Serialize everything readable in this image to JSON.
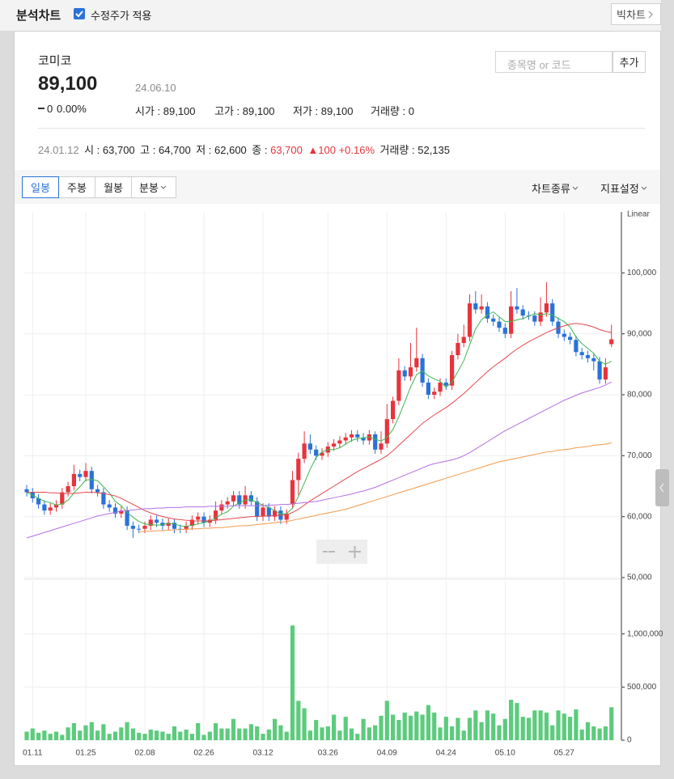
{
  "header": {
    "title": "분석차트",
    "checkbox_label": "수정주가 적용",
    "big_chart": "빅차트"
  },
  "search": {
    "placeholder": "종목명 or 코드",
    "button": "추가"
  },
  "stock": {
    "name": "코미코",
    "price": "89,100",
    "date": "24.06.10",
    "change": "0",
    "change_rate": "0.00%",
    "stats": [
      "시가 : 89,100",
      "고가 : 89,100",
      "저가 : 89,100",
      "거래량 : 0"
    ]
  },
  "cursor_info": {
    "date": "24.01.12",
    "open": "시 : 63,700",
    "high": "고 : 64,700",
    "low": "저 : 62,600",
    "close_label": "종 :",
    "close": "63,700",
    "change": "▲100",
    "change_rate": "+0.16%",
    "volume": "거래량 : 52,135"
  },
  "tabs": [
    "일봉",
    "주봉",
    "월봉",
    "분봉"
  ],
  "active_tab": 0,
  "menus": [
    "차트종류",
    "지표설정"
  ],
  "chart_data": [
    {
      "type": "candlestick",
      "scale_label": "Linear",
      "up_color": "#e8333c",
      "down_color": "#2a72d8",
      "ylim": [
        50000,
        110000
      ],
      "yticks": [
        {
          "value": 50000,
          "label": "50,000"
        },
        {
          "value": 60000,
          "label": "60,000"
        },
        {
          "value": 70000,
          "label": "70,000"
        },
        {
          "value": 80000,
          "label": "80,000"
        },
        {
          "value": 90000,
          "label": "90,000"
        },
        {
          "value": 100000,
          "label": "100,000"
        }
      ],
      "grid": true,
      "open": [
        64500,
        64000,
        63000,
        62000,
        61000,
        61500,
        62000,
        64000,
        65000,
        67000,
        66500,
        67500,
        64500,
        64000,
        62000,
        61500,
        60500,
        61000,
        58500,
        58000,
        58000,
        58500,
        59500,
        59000,
        58500,
        59000,
        58000,
        58000,
        58500,
        59500,
        60000,
        59000,
        59500,
        61000,
        62000,
        62500,
        63500,
        62000,
        63500,
        62500,
        60000,
        61500,
        60000,
        61000,
        59500,
        62000,
        66000,
        69500,
        72000,
        71000,
        70000,
        70500,
        71500,
        72000,
        72500,
        73000,
        73500,
        73000,
        72500,
        73500,
        71000,
        72000,
        76000,
        79000,
        84000,
        83000,
        84500,
        86000,
        82000,
        80000,
        80500,
        82000,
        81500,
        86500,
        88500,
        89500,
        95000,
        94000,
        94500,
        92500,
        92000,
        91000,
        90000,
        94500,
        94000,
        93000,
        93000,
        92000,
        93500,
        95000,
        92000,
        90000,
        89500,
        89000,
        87000,
        86500,
        86000,
        85500,
        82500,
        88300
      ],
      "high": [
        65200,
        64700,
        63700,
        62700,
        62200,
        62700,
        64700,
        65700,
        68500,
        67700,
        68800,
        68200,
        65200,
        64700,
        62700,
        62200,
        61700,
        61700,
        59200,
        58700,
        59200,
        60200,
        60200,
        59700,
        59700,
        59700,
        58700,
        59200,
        60200,
        60700,
        60700,
        60200,
        62500,
        62700,
        63200,
        64200,
        64200,
        65000,
        64200,
        63200,
        62200,
        62200,
        61700,
        61700,
        61200,
        67500,
        70500,
        74000,
        73500,
        71700,
        71200,
        72200,
        72700,
        73200,
        73700,
        74200,
        74200,
        73700,
        74200,
        74000,
        74000,
        78500,
        79700,
        86000,
        84700,
        88500,
        91000,
        86700,
        82700,
        81200,
        82700,
        82700,
        87200,
        90000,
        91500,
        96500,
        97000,
        96500,
        95200,
        93200,
        92700,
        91700,
        97000,
        97500,
        94700,
        93700,
        93700,
        96000,
        98500,
        95700,
        92700,
        90700,
        90200,
        89700,
        87700,
        87200,
        86700,
        86200,
        86000,
        91500
      ],
      "low": [
        63300,
        62300,
        61300,
        60300,
        60300,
        60800,
        61300,
        63300,
        64300,
        65800,
        65800,
        63800,
        63300,
        61300,
        60800,
        59800,
        59800,
        57800,
        56500,
        57300,
        57300,
        57800,
        58300,
        57800,
        57800,
        57300,
        57300,
        57300,
        57800,
        58800,
        58300,
        58300,
        58800,
        60300,
        61300,
        61800,
        61300,
        61300,
        61800,
        59300,
        59300,
        59300,
        59300,
        58800,
        58800,
        61300,
        63500,
        68800,
        70300,
        69300,
        69300,
        69800,
        70800,
        71300,
        71800,
        72300,
        72300,
        71800,
        71800,
        70300,
        70300,
        71300,
        75300,
        78300,
        82300,
        82300,
        83800,
        81300,
        79300,
        79300,
        79800,
        80800,
        80800,
        85800,
        87800,
        88800,
        93300,
        93300,
        91800,
        91300,
        90300,
        89300,
        89300,
        93300,
        92300,
        92300,
        91300,
        91300,
        92800,
        91300,
        89300,
        88800,
        88300,
        86300,
        85800,
        85300,
        84000,
        81800,
        81800,
        87800
      ],
      "close": [
        64000,
        63000,
        62000,
        61000,
        61500,
        62000,
        64000,
        65000,
        67000,
        66500,
        67500,
        64500,
        64000,
        62000,
        61500,
        60500,
        61000,
        58500,
        58000,
        58000,
        58500,
        59500,
        59000,
        58500,
        59000,
        58000,
        58000,
        58500,
        59500,
        60000,
        59000,
        59500,
        61000,
        62000,
        62500,
        63500,
        62000,
        63500,
        62500,
        60000,
        61500,
        60000,
        61000,
        59500,
        60500,
        66000,
        69500,
        72000,
        71000,
        70000,
        70500,
        71500,
        72000,
        72500,
        73000,
        73500,
        73000,
        72500,
        73500,
        71000,
        72000,
        76000,
        79000,
        84000,
        83000,
        84500,
        86000,
        82000,
        80000,
        80500,
        82000,
        81500,
        86500,
        88500,
        89500,
        95000,
        94000,
        94500,
        92500,
        92000,
        91000,
        90000,
        94500,
        94000,
        93000,
        93000,
        92000,
        93500,
        95000,
        92000,
        90000,
        89500,
        89000,
        87000,
        86500,
        86000,
        85500,
        82500,
        84500,
        89100
      ],
      "series": [
        {
          "color": "#3fb84e",
          "values": [
            64000,
            63500,
            63000,
            62500,
            62300,
            61900,
            62100,
            62700,
            63900,
            64900,
            66000,
            66100,
            65900,
            64900,
            63900,
            62500,
            61800,
            60700,
            59900,
            59200,
            58800,
            58700,
            58600,
            58700,
            58900,
            58800,
            58500,
            58400,
            58600,
            58800,
            59000,
            59300,
            59800,
            60400,
            60800,
            61700,
            62300,
            62700,
            62800,
            62300,
            61900,
            61500,
            61000,
            60400,
            60500,
            61400,
            63300,
            65500,
            67800,
            69700,
            70600,
            71000,
            71000,
            71300,
            71900,
            72500,
            72800,
            72900,
            73100,
            72700,
            72400,
            73000,
            74300,
            76400,
            78800,
            81300,
            83300,
            83900,
            83100,
            82600,
            82200,
            81200,
            82100,
            83800,
            85600,
            88200,
            90800,
            92300,
            93100,
            93600,
            92800,
            92000,
            92000,
            92300,
            92500,
            92900,
            93300,
            93100,
            93300,
            93100,
            92500,
            92000,
            91100,
            89500,
            88400,
            87600,
            86800,
            85500,
            85000,
            85500
          ]
        },
        {
          "color": "#e5484d",
          "values": [
            64000,
            64000,
            64000,
            64000,
            63900,
            63900,
            63800,
            63800,
            63800,
            63900,
            64000,
            64000,
            63900,
            63800,
            63600,
            63400,
            63000,
            62500,
            62000,
            61500,
            61000,
            60600,
            60300,
            60000,
            59800,
            59600,
            59500,
            59400,
            59300,
            59300,
            59300,
            59300,
            59400,
            59500,
            59600,
            59700,
            59800,
            59900,
            60000,
            60000,
            60100,
            60100,
            60200,
            60200,
            60300,
            60700,
            61200,
            61900,
            62600,
            63200,
            63800,
            64400,
            65000,
            65600,
            66200,
            66800,
            67400,
            67900,
            68400,
            68900,
            69400,
            70000,
            70800,
            71700,
            72600,
            73500,
            74400,
            75300,
            76000,
            76700,
            77300,
            77900,
            78600,
            79400,
            80200,
            81100,
            82000,
            82900,
            83800,
            84600,
            85300,
            86000,
            86800,
            87500,
            88100,
            88700,
            89200,
            89700,
            90200,
            90600,
            91000,
            91300,
            91600,
            91700,
            91600,
            91400,
            91100,
            90700,
            90400,
            90200
          ]
        },
        {
          "color": "#b46ee6",
          "values": [
            56500,
            56800,
            57100,
            57400,
            57700,
            58000,
            58300,
            58600,
            58900,
            59200,
            59500,
            59800,
            60100,
            60300,
            60500,
            60700,
            60900,
            61000,
            61100,
            61200,
            61300,
            61300,
            61400,
            61400,
            61500,
            61500,
            61500,
            61600,
            61600,
            61600,
            61600,
            61700,
            61700,
            61700,
            61700,
            61800,
            61800,
            61800,
            61800,
            61800,
            61800,
            61900,
            61900,
            62000,
            62000,
            62100,
            62200,
            62300,
            62400,
            62500,
            62700,
            62900,
            63100,
            63300,
            63500,
            63700,
            64000,
            64200,
            64500,
            64800,
            65200,
            65600,
            66000,
            66400,
            66800,
            67200,
            67600,
            68000,
            68400,
            68700,
            68900,
            69100,
            69300,
            69600,
            70000,
            70500,
            71100,
            71700,
            72300,
            72900,
            73500,
            74100,
            74600,
            75100,
            75600,
            76100,
            76600,
            77100,
            77600,
            78100,
            78600,
            79100,
            79500,
            79900,
            80300,
            80600,
            80900,
            81200,
            81600,
            82100
          ]
        },
        {
          "color": "#f29a4a",
          "values": [
            null,
            null,
            null,
            null,
            null,
            null,
            null,
            null,
            null,
            null,
            null,
            null,
            null,
            null,
            null,
            null,
            null,
            null,
            null,
            57500,
            57600,
            57600,
            57700,
            57700,
            57800,
            57800,
            57900,
            57900,
            58000,
            58000,
            58100,
            58100,
            58200,
            58200,
            58300,
            58400,
            58500,
            58500,
            58600,
            58700,
            58800,
            58900,
            59000,
            59100,
            59200,
            59400,
            59600,
            59800,
            60000,
            60200,
            60400,
            60600,
            60800,
            61000,
            61200,
            61500,
            61800,
            62100,
            62400,
            62700,
            63000,
            63300,
            63600,
            63900,
            64200,
            64500,
            64800,
            65100,
            65400,
            65700,
            66000,
            66300,
            66600,
            66900,
            67200,
            67500,
            67800,
            68100,
            68400,
            68700,
            69000,
            69200,
            69400,
            69600,
            69800,
            70000,
            70200,
            70400,
            70600,
            70700,
            70900,
            71000,
            71100,
            71300,
            71400,
            71500,
            71700,
            71800,
            71900,
            72100
          ]
        }
      ]
    },
    {
      "type": "bar",
      "color": "#5ccb7d",
      "ylim": [
        0,
        1500000
      ],
      "yticks": [
        0,
        {
          "value": 500000,
          "label": "500,000"
        },
        {
          "value": 1000000,
          "label": "1,000,000"
        }
      ],
      "grid": true,
      "categories": [
        null,
        "01.11",
        null,
        null,
        null,
        null,
        null,
        null,
        null,
        null,
        "01.25",
        null,
        null,
        null,
        null,
        null,
        null,
        null,
        null,
        null,
        "02.08",
        null,
        null,
        null,
        null,
        null,
        null,
        null,
        null,
        null,
        "02.26",
        null,
        null,
        null,
        null,
        null,
        null,
        null,
        null,
        null,
        "03.12",
        null,
        null,
        null,
        null,
        null,
        null,
        null,
        null,
        null,
        null,
        "03.26",
        null,
        null,
        null,
        null,
        null,
        null,
        null,
        null,
        null,
        "04.09",
        null,
        null,
        null,
        null,
        null,
        null,
        null,
        null,
        null,
        "04.24",
        null,
        null,
        null,
        null,
        null,
        null,
        null,
        null,
        null,
        "05.10",
        null,
        null,
        null,
        null,
        null,
        null,
        null,
        null,
        null,
        "05.27",
        null,
        null,
        null,
        null,
        null,
        null,
        null,
        null
      ],
      "values": [
        80000,
        110000,
        70000,
        90000,
        60000,
        80000,
        50000,
        120000,
        160000,
        90000,
        140000,
        170000,
        90000,
        150000,
        60000,
        80000,
        120000,
        170000,
        110000,
        70000,
        60000,
        100000,
        90000,
        80000,
        60000,
        130000,
        80000,
        100000,
        60000,
        160000,
        50000,
        80000,
        160000,
        110000,
        110000,
        200000,
        110000,
        110000,
        150000,
        130000,
        60000,
        100000,
        200000,
        140000,
        80000,
        1080000,
        370000,
        300000,
        90000,
        190000,
        120000,
        130000,
        240000,
        90000,
        220000,
        110000,
        60000,
        200000,
        120000,
        140000,
        230000,
        370000,
        240000,
        190000,
        260000,
        230000,
        270000,
        240000,
        330000,
        260000,
        120000,
        220000,
        130000,
        210000,
        90000,
        210000,
        280000,
        170000,
        280000,
        250000,
        140000,
        200000,
        380000,
        350000,
        220000,
        210000,
        280000,
        280000,
        260000,
        140000,
        280000,
        250000,
        220000,
        290000,
        100000,
        170000,
        130000,
        110000,
        130000,
        310000
      ]
    }
  ]
}
